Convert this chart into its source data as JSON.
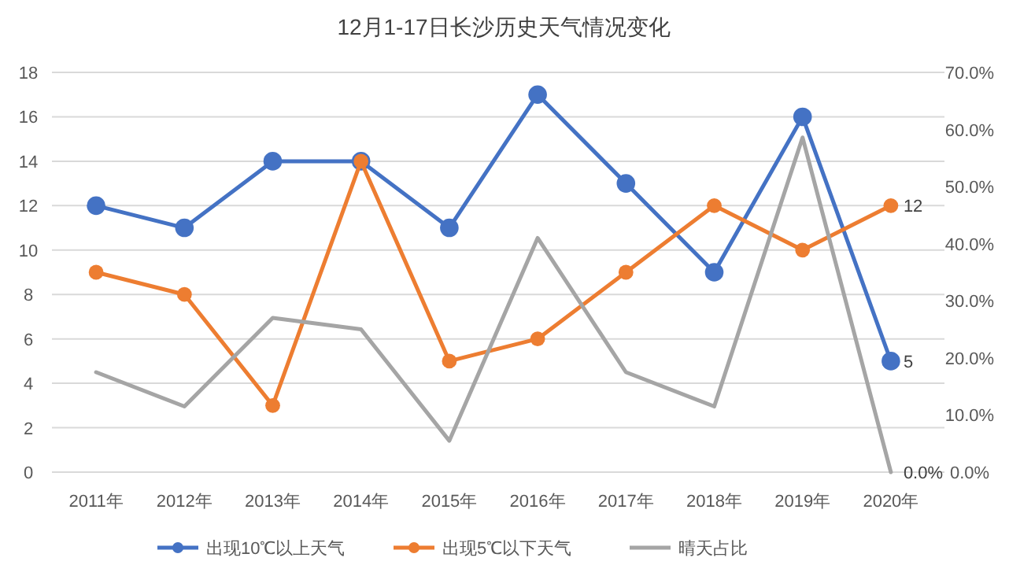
{
  "chart_data": {
    "type": "line",
    "title": "12月1-17日长沙历史天气情况变化",
    "categories": [
      "2011年",
      "2012年",
      "2013年",
      "2014年",
      "2015年",
      "2016年",
      "2017年",
      "2018年",
      "2019年",
      "2020年"
    ],
    "series": [
      {
        "name": "出现10℃以上天气",
        "color": "#4472c4",
        "marker": "circle",
        "values": [
          12,
          11,
          14,
          14,
          11,
          17,
          13,
          9,
          16,
          5
        ],
        "value_labels": [
          null,
          null,
          null,
          null,
          null,
          null,
          null,
          null,
          null,
          "5"
        ]
      },
      {
        "name": "出现5℃以下天气",
        "color": "#ed7d31",
        "marker": "circle",
        "values": [
          9,
          8,
          3,
          14,
          5,
          6,
          9,
          12,
          10,
          12
        ],
        "value_labels": [
          null,
          null,
          null,
          null,
          null,
          null,
          null,
          null,
          null,
          "12"
        ]
      },
      {
        "name": "晴天占比",
        "color": "#a5a5a5",
        "marker": "none",
        "axis": "y2",
        "values": [
          17.5,
          11.5,
          27,
          25,
          5.5,
          41,
          17.5,
          11.5,
          58.6,
          0
        ],
        "value_labels": [
          null,
          null,
          null,
          null,
          null,
          null,
          null,
          null,
          null,
          "0.0%"
        ]
      }
    ],
    "ylim": [
      0,
      18
    ],
    "yticks": [
      0,
      2,
      4,
      6,
      8,
      10,
      12,
      14,
      16,
      18
    ],
    "y2lim": [
      0,
      70
    ],
    "y2ticks": [
      {
        "value": 0,
        "label": "0.0%"
      },
      {
        "value": 10,
        "label": "10.0%"
      },
      {
        "value": 20,
        "label": "20.0%"
      },
      {
        "value": 30,
        "label": "30.0%"
      },
      {
        "value": 40,
        "label": "40.0%"
      },
      {
        "value": 50,
        "label": "50.0%"
      },
      {
        "value": 60,
        "label": "60.0%"
      },
      {
        "value": 70,
        "label": "70.0%"
      }
    ],
    "grid": "y",
    "legend": "bottom",
    "line_style": "solid"
  }
}
